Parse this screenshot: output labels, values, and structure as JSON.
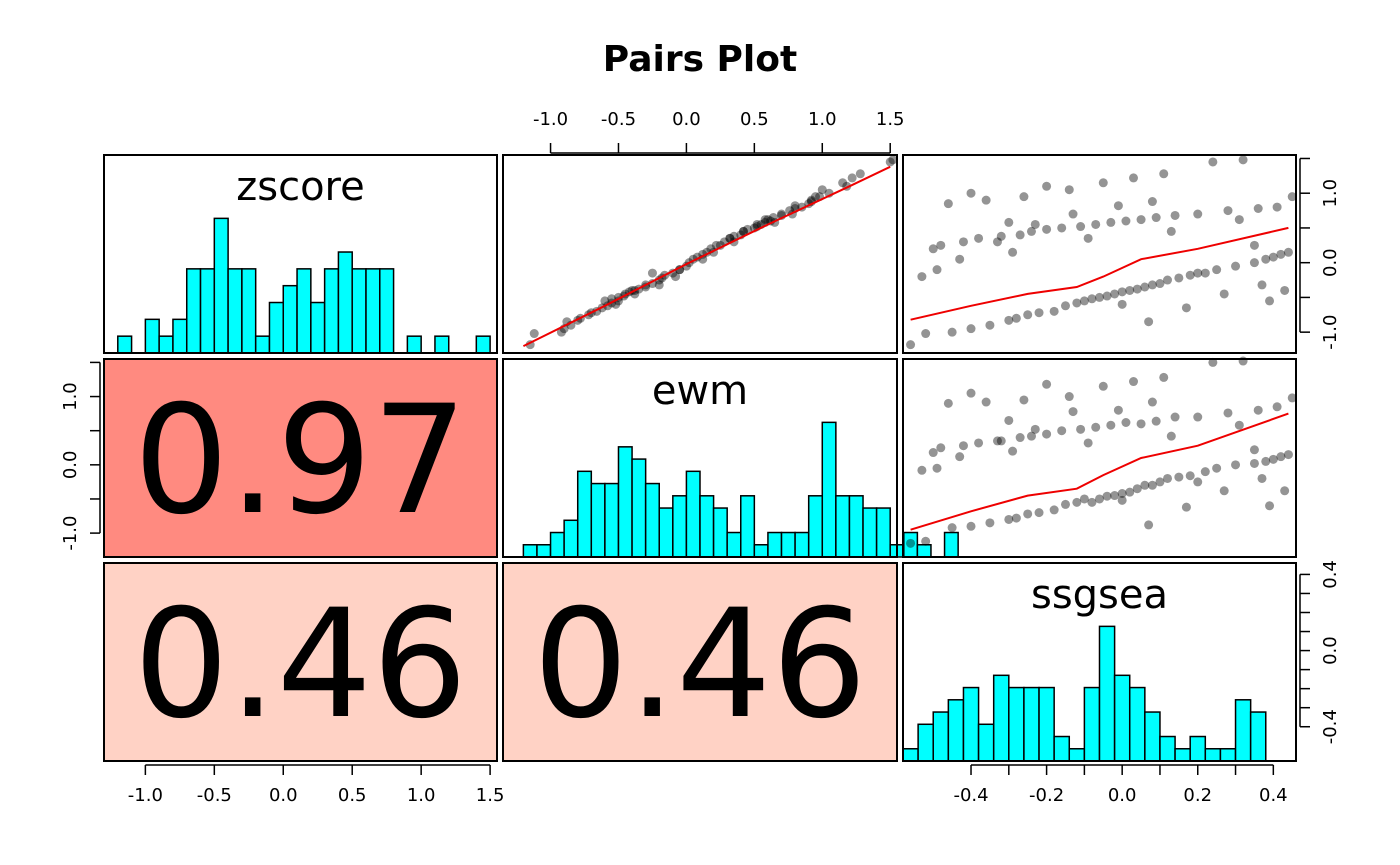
{
  "chart_data": {
    "type": "pairs",
    "title": "Pairs Plot",
    "variables": [
      "zscore",
      "ewm",
      "ssgsea"
    ],
    "colors": {
      "histogram": "#00ffff",
      "smooth_line": "#ee0000",
      "corr_strong": "#ff8a80",
      "corr_weak": "#ffd2c5"
    },
    "correlations": [
      {
        "row": 2,
        "col": 1,
        "label": "0.97",
        "value": 0.97
      },
      {
        "row": 3,
        "col": 1,
        "label": "0.46",
        "value": 0.46
      },
      {
        "row": 3,
        "col": 2,
        "label": "0.46",
        "value": 0.46
      }
    ],
    "axes": {
      "zscore": {
        "range": [
          -1.3,
          1.55
        ],
        "ticks": [
          -1.0,
          -0.5,
          0.0,
          0.5,
          1.0,
          1.5
        ],
        "tick_labels": [
          "-1.0",
          "-0.5",
          "0.0",
          "0.5",
          "1.0",
          "1.5"
        ]
      },
      "ewm": {
        "range": [
          -1.35,
          1.55
        ],
        "ticks": [
          -1.0,
          -0.5,
          0.0,
          0.5,
          1.0,
          1.5
        ],
        "tick_labels": [
          "-1.0",
          "-0.5",
          "0.0",
          "0.5",
          "1.0",
          "1.5"
        ],
        "tick_labels_left": [
          "-1.0",
          "",
          "0.0",
          "",
          "1.0",
          ""
        ]
      },
      "ssgsea": {
        "range": [
          -0.58,
          0.46
        ],
        "ticks": [
          -0.4,
          -0.3,
          -0.2,
          -0.1,
          0.0,
          0.1,
          0.2,
          0.3,
          0.4
        ],
        "tick_labels": [
          "-0.4",
          "",
          "-0.2",
          "",
          "0.0",
          "",
          "0.2",
          "",
          "0.4"
        ],
        "tick_labels_right": [
          "-0.4",
          "",
          "",
          "",
          "0.0",
          "",
          "",
          "",
          "0.4"
        ]
      }
    },
    "right_axis_zscore": {
      "ticks": [
        -1.0,
        -0.5,
        0.0,
        0.5,
        1.0,
        1.5
      ],
      "tick_labels": [
        "-1.0",
        "",
        "0.0",
        "",
        "1.0",
        ""
      ]
    },
    "histograms": {
      "zscore": {
        "start": -1.2,
        "width": 0.1,
        "counts": [
          1,
          0,
          2,
          1,
          2,
          5,
          5,
          8,
          5,
          5,
          1,
          3,
          4,
          5,
          3,
          5,
          6,
          5,
          5,
          5,
          0,
          1,
          0,
          1,
          0,
          0,
          1
        ],
        "max": 8
      },
      "ewm": {
        "start": -1.2,
        "width": 0.1,
        "counts": [
          1,
          1,
          2,
          3,
          7,
          6,
          6,
          9,
          8,
          6,
          4,
          5,
          7,
          5,
          4,
          2,
          5,
          1,
          2,
          2,
          2,
          5,
          11,
          5,
          5,
          4,
          4,
          1,
          2,
          1,
          0,
          2
        ],
        "max": 11
      },
      "ssgsea": {
        "start": -0.58,
        "width": 0.04,
        "counts": [
          1,
          3,
          4,
          5,
          6,
          3,
          7,
          6,
          6,
          6,
          2,
          1,
          6,
          11,
          7,
          6,
          4,
          2,
          1,
          2,
          1,
          1,
          5,
          4
        ],
        "max": 11
      }
    },
    "points": {
      "zscore": [
        -1.18,
        -1.02,
        -1.0,
        -0.95,
        -0.9,
        -0.83,
        -0.8,
        -0.75,
        -0.72,
        -0.7,
        -0.62,
        -0.58,
        -0.55,
        -0.52,
        -0.5,
        -0.48,
        -0.45,
        -0.42,
        -0.4,
        -0.38,
        -0.35,
        -0.32,
        -0.3,
        -0.25,
        -0.22,
        -0.18,
        -0.15,
        -0.1,
        -0.05,
        0.0,
        0.05,
        0.08,
        0.12,
        0.15,
        0.2,
        0.25,
        0.3,
        0.35,
        0.38,
        0.4,
        0.45,
        0.48,
        0.5,
        0.52,
        0.55,
        0.58,
        0.6,
        0.62,
        0.65,
        0.68,
        0.7,
        0.75,
        0.78,
        0.8,
        0.85,
        0.9,
        0.95,
        1.05,
        1.15,
        1.22,
        1.28,
        1.45,
        1.48,
        -0.55,
        -0.4,
        -0.2,
        0.05,
        0.3,
        0.55,
        0.7,
        0.82,
        -0.85,
        -0.65,
        -0.45,
        -0.32,
        -0.1,
        0.15,
        0.35,
        0.45,
        0.62,
        0.95,
        1.0,
        1.1,
        -0.6,
        -0.15,
        0.25,
        0.58,
        0.88
      ],
      "ewm": [
        -1.15,
        -1.12,
        -0.92,
        -0.9,
        -0.85,
        -0.8,
        -0.78,
        -0.72,
        -0.7,
        -0.66,
        -0.58,
        -0.55,
        -0.5,
        -0.55,
        -0.5,
        -0.46,
        -0.45,
        -0.42,
        -0.4,
        -0.35,
        -0.3,
        -0.3,
        -0.25,
        -0.2,
        -0.18,
        -0.16,
        -0.1,
        -0.05,
        0.0,
        0.02,
        0.05,
        0.08,
        0.12,
        0.15,
        0.18,
        0.25,
        0.28,
        0.32,
        0.35,
        0.4,
        0.42,
        0.45,
        0.5,
        0.52,
        0.55,
        0.58,
        0.62,
        0.6,
        0.64,
        0.7,
        0.7,
        0.76,
        0.8,
        0.85,
        0.9,
        0.92,
        0.95,
        1.0,
        1.15,
        1.22,
        1.28,
        1.5,
        1.52,
        -0.6,
        -0.38,
        -0.08,
        0.12,
        0.35,
        0.52,
        0.78,
        0.8,
        -0.88,
        -0.62,
        -0.38,
        -0.2,
        -0.05,
        0.2,
        0.32,
        0.42,
        0.58,
        0.98,
        1.05,
        1.18,
        -0.52,
        -0.25,
        0.22,
        0.65,
        0.92
      ],
      "ssgsea": [
        -0.56,
        -0.52,
        -0.45,
        -0.4,
        -0.35,
        -0.3,
        -0.28,
        -0.25,
        -0.22,
        -0.18,
        -0.15,
        -0.12,
        -0.1,
        -0.08,
        -0.06,
        -0.04,
        -0.02,
        0.0,
        0.02,
        0.04,
        0.06,
        0.08,
        0.1,
        0.12,
        0.15,
        0.18,
        0.22,
        0.25,
        0.3,
        0.35,
        0.38,
        0.4,
        0.42,
        0.44,
        -0.5,
        -0.48,
        -0.42,
        -0.38,
        -0.32,
        -0.27,
        -0.24,
        -0.2,
        -0.16,
        -0.11,
        -0.07,
        -0.03,
        0.01,
        0.05,
        0.09,
        0.14,
        0.2,
        0.28,
        0.36,
        0.41,
        -0.46,
        -0.36,
        -0.26,
        -0.14,
        -0.05,
        0.03,
        0.11,
        0.24,
        0.32,
        0.39,
        0.43,
        -0.53,
        -0.43,
        -0.33,
        -0.23,
        -0.13,
        -0.01,
        0.07,
        0.17,
        0.27,
        0.37,
        -0.49,
        -0.29,
        -0.09,
        0.13,
        0.31,
        0.45,
        -0.4,
        -0.2,
        0.0,
        0.2,
        0.35,
        -0.3,
        0.08,
        0.42
      ]
    },
    "smooth": {
      "zscore_ewm": {
        "x": [
          -1.2,
          -0.6,
          0.0,
          0.6,
          1.2,
          1.5
        ],
        "y": [
          -1.2,
          -0.62,
          -0.02,
          0.55,
          1.1,
          1.38
        ]
      },
      "ssgsea_zscore": {
        "x": [
          -0.56,
          -0.4,
          -0.25,
          -0.12,
          -0.05,
          0.05,
          0.2,
          0.44
        ],
        "y": [
          -0.82,
          -0.62,
          -0.45,
          -0.35,
          -0.2,
          0.05,
          0.2,
          0.5
        ]
      },
      "ssgsea_ewm": {
        "x": [
          -0.56,
          -0.4,
          -0.25,
          -0.12,
          -0.05,
          0.05,
          0.2,
          0.44
        ],
        "y": [
          -0.95,
          -0.68,
          -0.45,
          -0.35,
          -0.15,
          0.1,
          0.28,
          0.75
        ]
      }
    }
  }
}
